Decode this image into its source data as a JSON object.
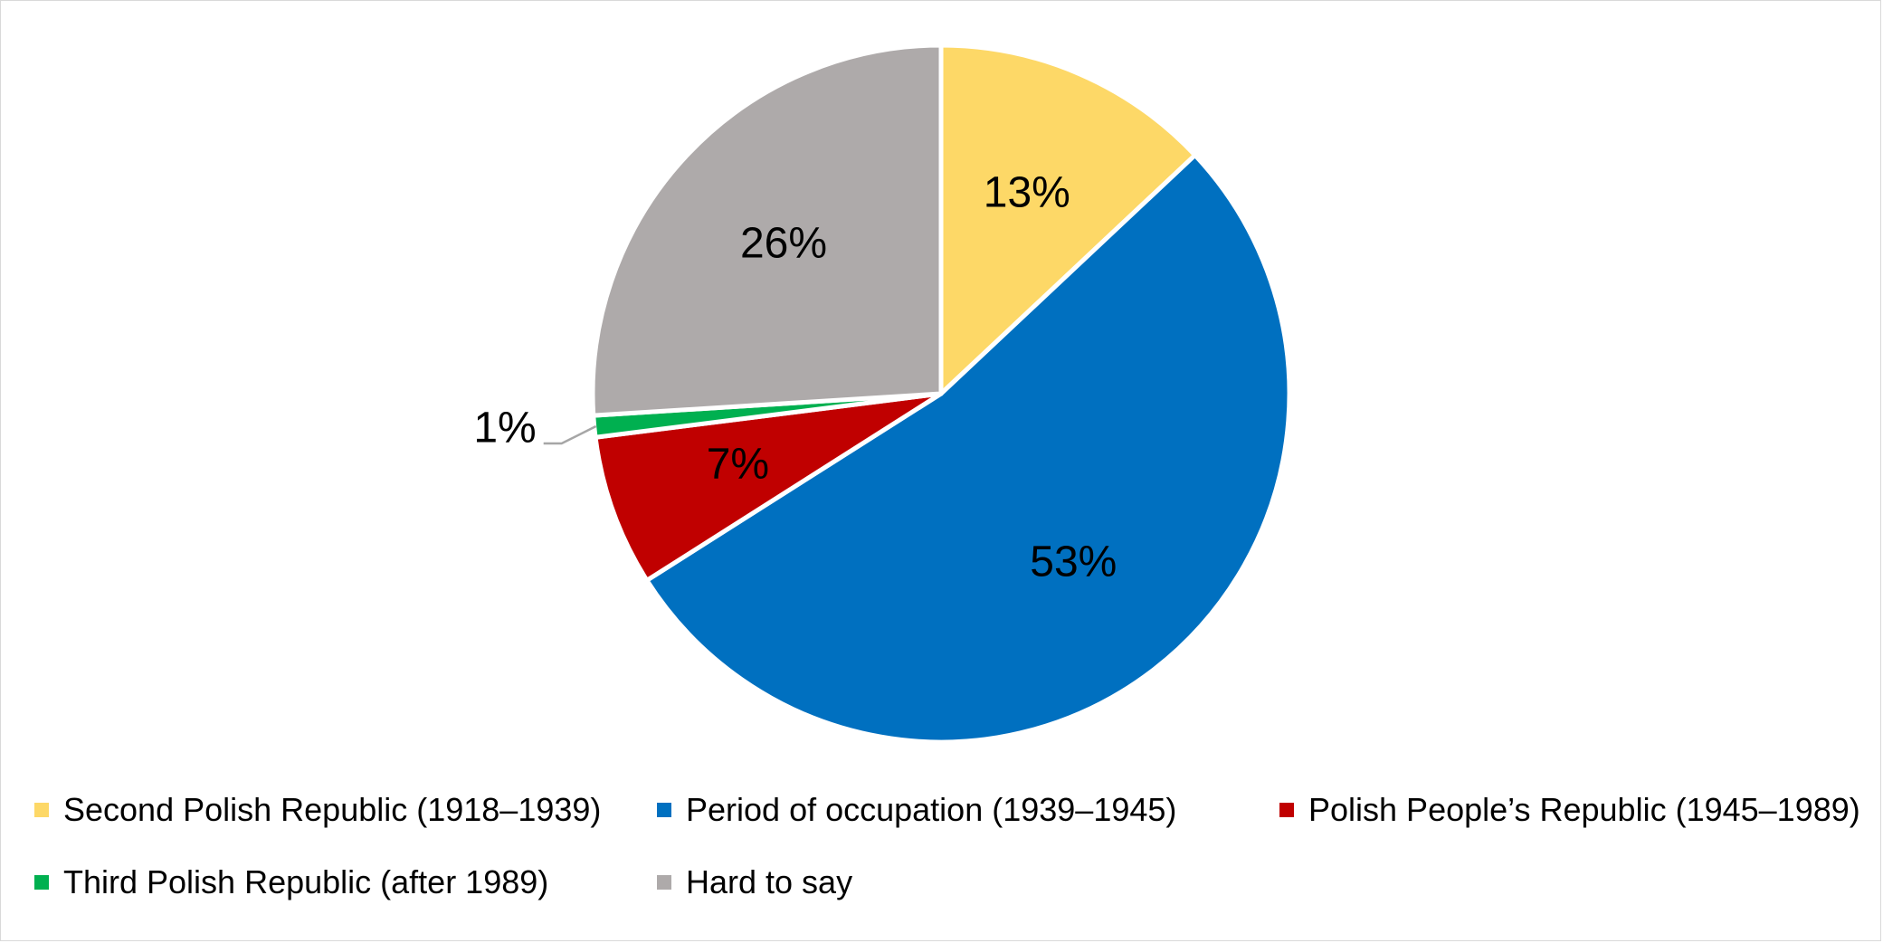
{
  "chart_data": {
    "type": "pie",
    "title": "",
    "start_angle_deg": 0,
    "direction": "clockwise",
    "data_label_suffix": "%",
    "slices": [
      {
        "name": "Second Polish Republic (1918–1939)",
        "value": 13,
        "label": "13%",
        "color": "#FDD867"
      },
      {
        "name": "Period of occupation (1939–1945)",
        "value": 53,
        "label": "53%",
        "color": "#0070C0"
      },
      {
        "name": "Polish People’s Republic (1945–1989)",
        "value": 7,
        "label": "7%",
        "color": "#C00000"
      },
      {
        "name": "Third Polish Republic (after 1989)",
        "value": 1,
        "label": "1%",
        "color": "#00B050",
        "label_outside": true
      },
      {
        "name": "Hard to say",
        "value": 26,
        "label": "26%",
        "color": "#AEAAAA"
      }
    ],
    "legend_position": "bottom"
  },
  "legend": {
    "items": [
      {
        "label": "Second Polish Republic (1918–1939)",
        "color": "#FDD867"
      },
      {
        "label": "Period of occupation (1939–1945)",
        "color": "#0070C0"
      },
      {
        "label": "Polish People’s Republic (1945–1989)",
        "color": "#C00000"
      },
      {
        "label": "Third Polish Republic (after 1989)",
        "color": "#00B050"
      },
      {
        "label": "Hard to say",
        "color": "#AEAAAA"
      }
    ]
  }
}
